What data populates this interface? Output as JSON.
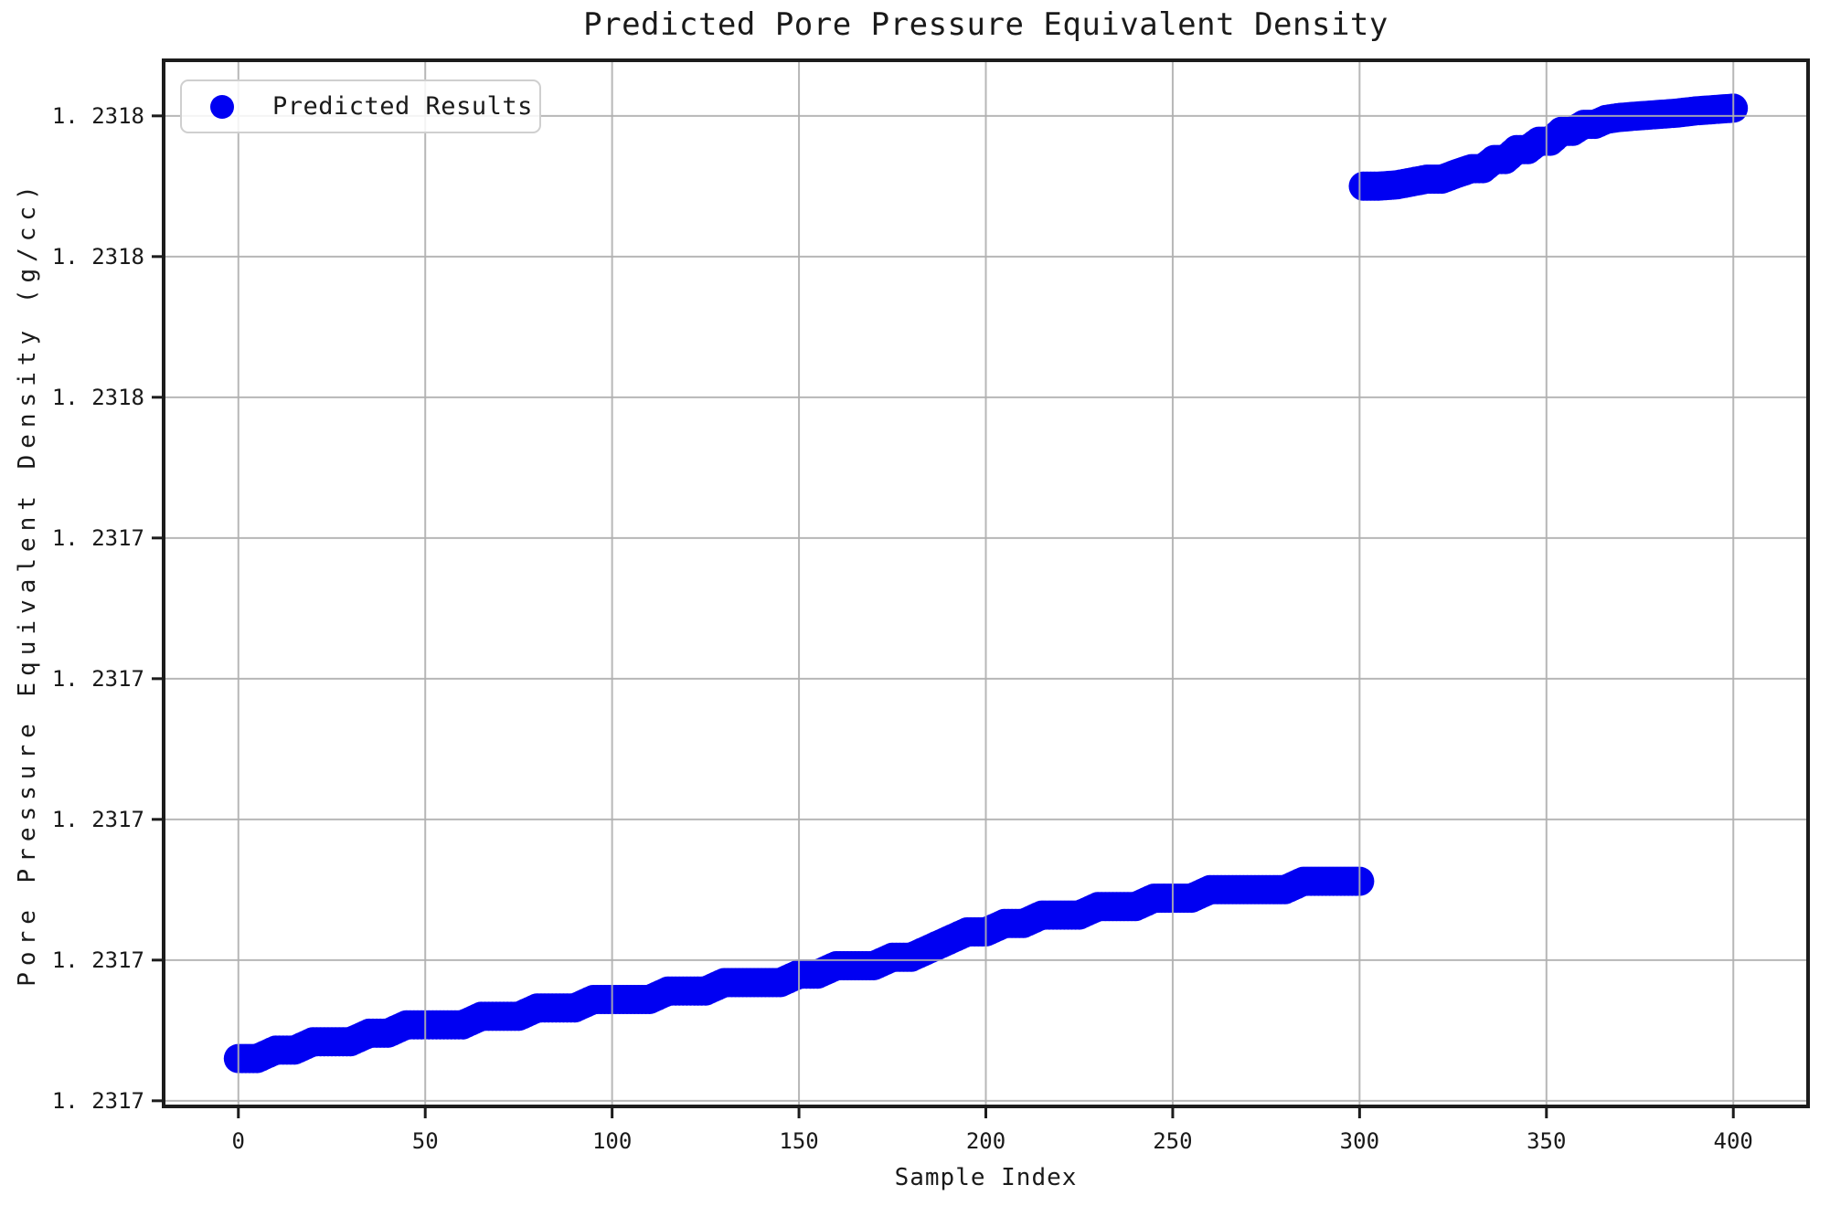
{
  "chart_data": {
    "type": "scatter",
    "title": "Predicted Pore Pressure Equivalent Density",
    "xlabel": "Sample Index",
    "ylabel": "Pore Pressure Equivalent Density (g/cc)",
    "legend": {
      "label": "Predicted Results",
      "position": "upper left"
    },
    "grid": true,
    "xlim": [
      -20,
      420
    ],
    "ylim": [
      1.2316592,
      1.2318079
    ],
    "xticks": [
      {
        "value": 0,
        "label": "0"
      },
      {
        "value": 50,
        "label": "50"
      },
      {
        "value": 100,
        "label": "100"
      },
      {
        "value": 150,
        "label": "150"
      },
      {
        "value": 200,
        "label": "200"
      },
      {
        "value": 250,
        "label": "250"
      },
      {
        "value": 300,
        "label": "300"
      },
      {
        "value": 350,
        "label": "350"
      },
      {
        "value": 400,
        "label": "400"
      }
    ],
    "yticks": [
      {
        "value": 1.23166,
        "label": "1. 2317"
      },
      {
        "value": 1.23168,
        "label": "1. 2317"
      },
      {
        "value": 1.2317,
        "label": "1. 2317"
      },
      {
        "value": 1.23172,
        "label": "1. 2317"
      },
      {
        "value": 1.23174,
        "label": "1. 2317"
      },
      {
        "value": 1.23176,
        "label": "1. 2318"
      },
      {
        "value": 1.23178,
        "label": "1. 2318"
      },
      {
        "value": 1.2318,
        "label": "1. 2318"
      }
    ],
    "marker": {
      "shape": "circle",
      "color": "#0000f2",
      "radius_px": 16
    },
    "series": [
      {
        "name": "Predicted Results",
        "points": [
          [
            0,
            1.231666
          ],
          [
            5,
            1.231666
          ],
          [
            10,
            1.2316672
          ],
          [
            15,
            1.2316672
          ],
          [
            20,
            1.2316684
          ],
          [
            25,
            1.2316684
          ],
          [
            30,
            1.2316684
          ],
          [
            35,
            1.2316696
          ],
          [
            40,
            1.2316696
          ],
          [
            45,
            1.2316708
          ],
          [
            50,
            1.2316708
          ],
          [
            55,
            1.2316708
          ],
          [
            60,
            1.2316708
          ],
          [
            65,
            1.231672
          ],
          [
            70,
            1.231672
          ],
          [
            75,
            1.231672
          ],
          [
            80,
            1.2316732
          ],
          [
            85,
            1.2316732
          ],
          [
            90,
            1.2316732
          ],
          [
            95,
            1.2316744
          ],
          [
            100,
            1.2316744
          ],
          [
            105,
            1.2316744
          ],
          [
            110,
            1.2316744
          ],
          [
            115,
            1.2316756
          ],
          [
            120,
            1.2316756
          ],
          [
            125,
            1.2316756
          ],
          [
            130,
            1.2316768
          ],
          [
            135,
            1.2316768
          ],
          [
            140,
            1.2316768
          ],
          [
            145,
            1.2316768
          ],
          [
            150,
            1.231678
          ],
          [
            155,
            1.231678
          ],
          [
            160,
            1.2316792
          ],
          [
            165,
            1.2316792
          ],
          [
            170,
            1.2316792
          ],
          [
            175,
            1.2316804
          ],
          [
            180,
            1.2316804
          ],
          [
            185,
            1.2316816
          ],
          [
            190,
            1.2316828
          ],
          [
            195,
            1.231684
          ],
          [
            200,
            1.231684
          ],
          [
            205,
            1.2316852
          ],
          [
            210,
            1.2316852
          ],
          [
            215,
            1.2316864
          ],
          [
            220,
            1.2316864
          ],
          [
            225,
            1.2316864
          ],
          [
            230,
            1.2316876
          ],
          [
            235,
            1.2316876
          ],
          [
            240,
            1.2316876
          ],
          [
            245,
            1.2316888
          ],
          [
            250,
            1.2316888
          ],
          [
            255,
            1.2316888
          ],
          [
            260,
            1.23169
          ],
          [
            265,
            1.23169
          ],
          [
            270,
            1.23169
          ],
          [
            275,
            1.23169
          ],
          [
            280,
            1.23169
          ],
          [
            285,
            1.2316912
          ],
          [
            290,
            1.2316912
          ],
          [
            295,
            1.2316912
          ],
          [
            300,
            1.2316912
          ],
          [
            301,
            1.23179
          ],
          [
            305,
            1.23179
          ],
          [
            310,
            1.2317902
          ],
          [
            314,
            1.2317906
          ],
          [
            318,
            1.231791
          ],
          [
            322,
            1.231791
          ],
          [
            326,
            1.2317918
          ],
          [
            330,
            1.2317925
          ],
          [
            333,
            1.2317925
          ],
          [
            336,
            1.2317938
          ],
          [
            339,
            1.2317938
          ],
          [
            342,
            1.2317952
          ],
          [
            345,
            1.2317952
          ],
          [
            348,
            1.2317964
          ],
          [
            351,
            1.2317964
          ],
          [
            354,
            1.2317978
          ],
          [
            357,
            1.2317978
          ],
          [
            360,
            1.2317988
          ],
          [
            363,
            1.2317988
          ],
          [
            366,
            1.2317995
          ],
          [
            370,
            1.2317998
          ],
          [
            375,
            1.2318
          ],
          [
            380,
            1.2318002
          ],
          [
            385,
            1.2318004
          ],
          [
            390,
            1.2318007
          ],
          [
            395,
            1.2318009
          ],
          [
            400,
            1.2318011
          ]
        ]
      }
    ]
  },
  "style": {
    "background": "#ffffff",
    "spine_color": "#1c1c1c",
    "grid_color": "#b0b0b0",
    "text_color": "#1a1a1a",
    "legend_border": "#cfcfcf",
    "point_color": "#0000f2"
  }
}
